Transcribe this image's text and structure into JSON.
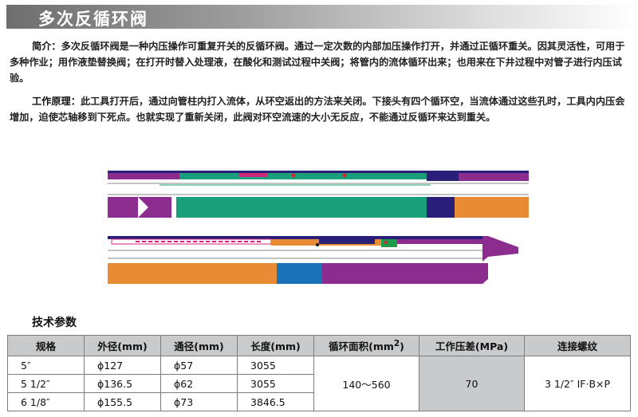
{
  "header": {
    "title": "多次反循环阀"
  },
  "intro": {
    "label": "简介：",
    "text": "多次反循环阀是一种内压操作可重复开关的反循环阀。通过一定次数的内部加压操作打开，并通过正循环重关。因其灵活性，可用于多种作业；用作液垫替换阀；在打开时替入处理液，在酸化和测试过程中关阀；将管内的流体循环出来；也用来在下井过程中对管子进行内压试验。"
  },
  "principle": {
    "label": "工作原理：",
    "text": "此工具打开后，通过向管柱内打入流体，从环空返出的方法来关闭。下接头有四个循环空，当流体通过这些孔时，工具内内压会增加，迫使芯轴移到下死点。也就实现了重新关闭，此阀对环空流速的大小无反应，不能通过反循环来达到重关。"
  },
  "specs": {
    "title": "技术参数",
    "headers": [
      "规格",
      "外径(mm)",
      "通径(mm)",
      "长度(mm)",
      "循环面积(mm²)",
      "工作压差(MPa)",
      "连接螺纹"
    ],
    "rows": [
      {
        "size": "5″",
        "od": "ϕ127",
        "id": "ϕ57",
        "length": "3055"
      },
      {
        "size": "5 1/2″",
        "od": "ϕ136.5",
        "id": "ϕ62",
        "length": "3055"
      },
      {
        "size": "6 1/8″",
        "od": "ϕ155.5",
        "id": "ϕ73",
        "length": "3846.5"
      }
    ],
    "circ_area": "140～560",
    "work_pressure": "70",
    "thread": "3 1/2″ IF·B×P"
  },
  "colors": {
    "purple": "#8c2c8e",
    "teal": "#19a07a",
    "navy": "#2a1f78",
    "orange": "#e98a35",
    "blue": "#1a73b8",
    "green": "#1f9a4b",
    "red": "#d4242e",
    "magenta": "#d0257d"
  }
}
